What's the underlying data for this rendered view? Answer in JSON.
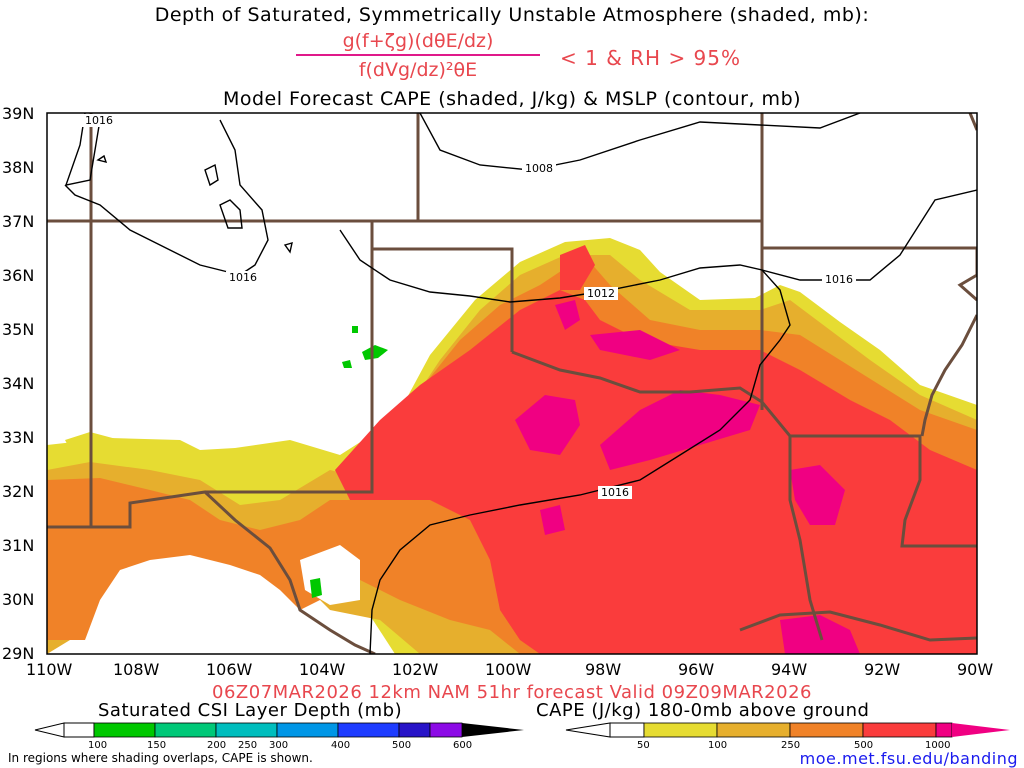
{
  "title": {
    "line1": "Depth of Saturated, Symmetrically Unstable Atmosphere (shaded, mb):",
    "numerator": "g(f+ζg)(dθE/dz)",
    "denominator": "f(dVg/dz)²θE",
    "condition": "< 1 & RH > 95%",
    "line3": "Model Forecast CAPE (shaded, J/kg) & MSLP (contour, mb)"
  },
  "valid_line": "06Z07MAR2026 12km NAM 51hr forecast Valid 09Z09MAR2026",
  "map": {
    "lat_labels": [
      "39N",
      "38N",
      "37N",
      "36N",
      "35N",
      "34N",
      "33N",
      "32N",
      "31N",
      "30N",
      "29N"
    ],
    "lon_labels": [
      "110W",
      "108W",
      "106W",
      "104W",
      "102W",
      "100W",
      "98W",
      "96W",
      "94W",
      "92W",
      "90W"
    ],
    "contour_labels": [
      "1016",
      "1008",
      "1016",
      "1012",
      "1016",
      "1016"
    ]
  },
  "legend_csi": {
    "title": "Saturated CSI Layer Depth (mb)",
    "ticks": [
      "100",
      "150",
      "200",
      "250",
      "300",
      "400",
      "500",
      "600"
    ],
    "colors": [
      "#00c800",
      "#00c878",
      "#00bebe",
      "#0096e6",
      "#1e3cff",
      "#2814c8",
      "#8c0ae6"
    ]
  },
  "legend_cape": {
    "title": "CAPE (J/kg) 180-0mb above ground",
    "ticks": [
      "50",
      "100",
      "250",
      "500",
      "1000"
    ],
    "colors": [
      "#e6dc32",
      "#e6af2d",
      "#f08228",
      "#fa3c3c",
      "#f00082"
    ]
  },
  "note": "In regions where shading overlaps, CAPE is shown.",
  "credit": "moe.met.fsu.edu/banding"
}
